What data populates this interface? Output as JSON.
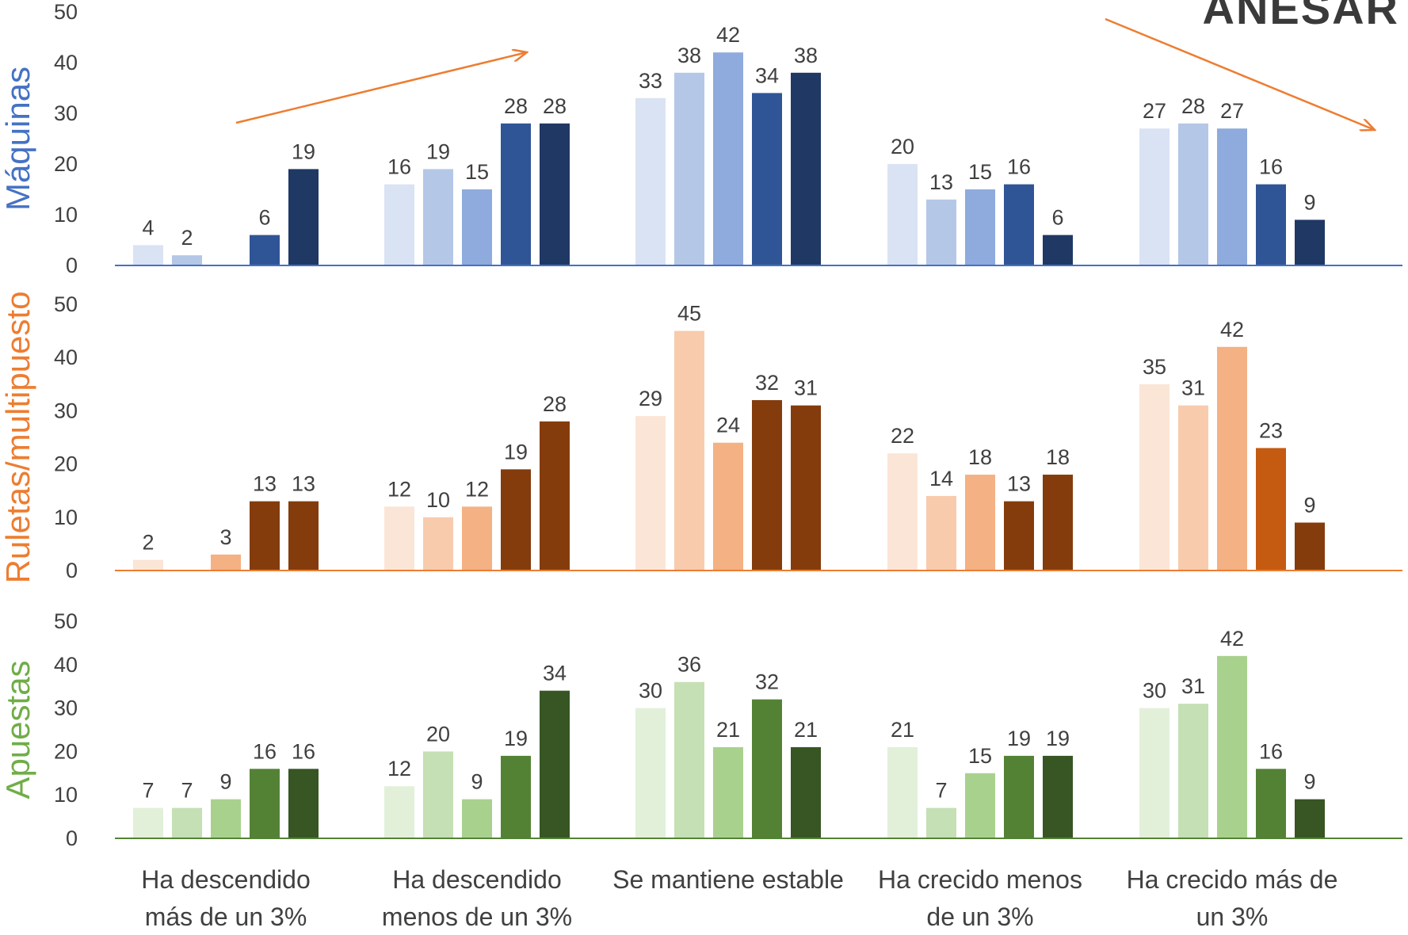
{
  "logo_text": "ANESAR",
  "chart_data": {
    "type": "bar",
    "categories": [
      [
        "Ha descendido",
        "más de un 3%"
      ],
      [
        "Ha descendido",
        "menos de un 3%"
      ],
      [
        "Se mantiene estable"
      ],
      [
        "Ha crecido menos",
        "de un 3%"
      ],
      [
        "Ha crecido más de",
        "un 3%"
      ]
    ],
    "ylim": [
      0,
      50
    ],
    "yticks": [
      0,
      10,
      20,
      30,
      40,
      50
    ],
    "grid": false,
    "legend": "none",
    "panels": [
      {
        "ylabel": "Máquinas",
        "title_color": "#4472C4",
        "axis_color": "#4472C4",
        "values": [
          [
            4,
            2,
            null,
            6,
            19
          ],
          [
            16,
            19,
            15,
            28,
            28
          ],
          [
            33,
            38,
            42,
            34,
            38
          ],
          [
            20,
            13,
            15,
            16,
            6
          ],
          [
            27,
            28,
            27,
            16,
            9
          ]
        ],
        "colors": [
          [
            "#DAE3F3",
            "#B4C7E7",
            "#8FAADC",
            "#2F5597",
            "#203864"
          ],
          [
            "#DAE3F3",
            "#B4C7E7",
            "#8FAADC",
            "#2F5597",
            "#203864"
          ],
          [
            "#DAE3F3",
            "#B4C7E7",
            "#8FAADC",
            "#2F5597",
            "#203864"
          ],
          [
            "#DAE3F3",
            "#B4C7E7",
            "#8FAADC",
            "#2F5597",
            "#203864"
          ],
          [
            "#DAE3F3",
            "#B4C7E7",
            "#8FAADC",
            "#2F5597",
            "#203864"
          ]
        ],
        "trend_arrows": "up-then-down"
      },
      {
        "ylabel": "Ruletas/multipuesto",
        "title_color": "#ED7D31",
        "axis_color": "#ED7D31",
        "values": [
          [
            2,
            null,
            3,
            13,
            13
          ],
          [
            12,
            10,
            12,
            19,
            28
          ],
          [
            29,
            45,
            24,
            32,
            31
          ],
          [
            22,
            14,
            18,
            13,
            18
          ],
          [
            35,
            31,
            42,
            23,
            9
          ]
        ],
        "colors": [
          [
            "#FBE5D6",
            "#F8CBAD",
            "#F4B183",
            "#843C0C",
            "#843C0C"
          ],
          [
            "#FBE5D6",
            "#F8CBAD",
            "#F4B183",
            "#843C0C",
            "#843C0C"
          ],
          [
            "#FBE5D6",
            "#F8CBAD",
            "#F4B183",
            "#843C0C",
            "#843C0C"
          ],
          [
            "#FBE5D6",
            "#F8CBAD",
            "#F4B183",
            "#843C0C",
            "#843C0C"
          ],
          [
            "#FBE5D6",
            "#F8CBAD",
            "#F4B183",
            "#C55A11",
            "#843C0C"
          ]
        ]
      },
      {
        "ylabel": "Apuestas",
        "title_color": "#70AD47",
        "axis_color": "#548235",
        "values": [
          [
            7,
            7,
            9,
            16,
            16
          ],
          [
            12,
            20,
            9,
            19,
            34
          ],
          [
            30,
            36,
            21,
            32,
            21
          ],
          [
            21,
            7,
            15,
            19,
            19
          ],
          [
            30,
            31,
            42,
            16,
            9
          ]
        ],
        "colors": [
          [
            "#E2F0D9",
            "#C5E0B4",
            "#A9D18E",
            "#548235",
            "#375623"
          ],
          [
            "#E2F0D9",
            "#C5E0B4",
            "#A9D18E",
            "#548235",
            "#375623"
          ],
          [
            "#E2F0D9",
            "#C5E0B4",
            "#A9D18E",
            "#548235",
            "#375623"
          ],
          [
            "#E2F0D9",
            "#C5E0B4",
            "#A9D18E",
            "#548235",
            "#375623"
          ],
          [
            "#E2F0D9",
            "#C5E0B4",
            "#A9D18E",
            "#548235",
            "#375623"
          ]
        ]
      }
    ]
  }
}
